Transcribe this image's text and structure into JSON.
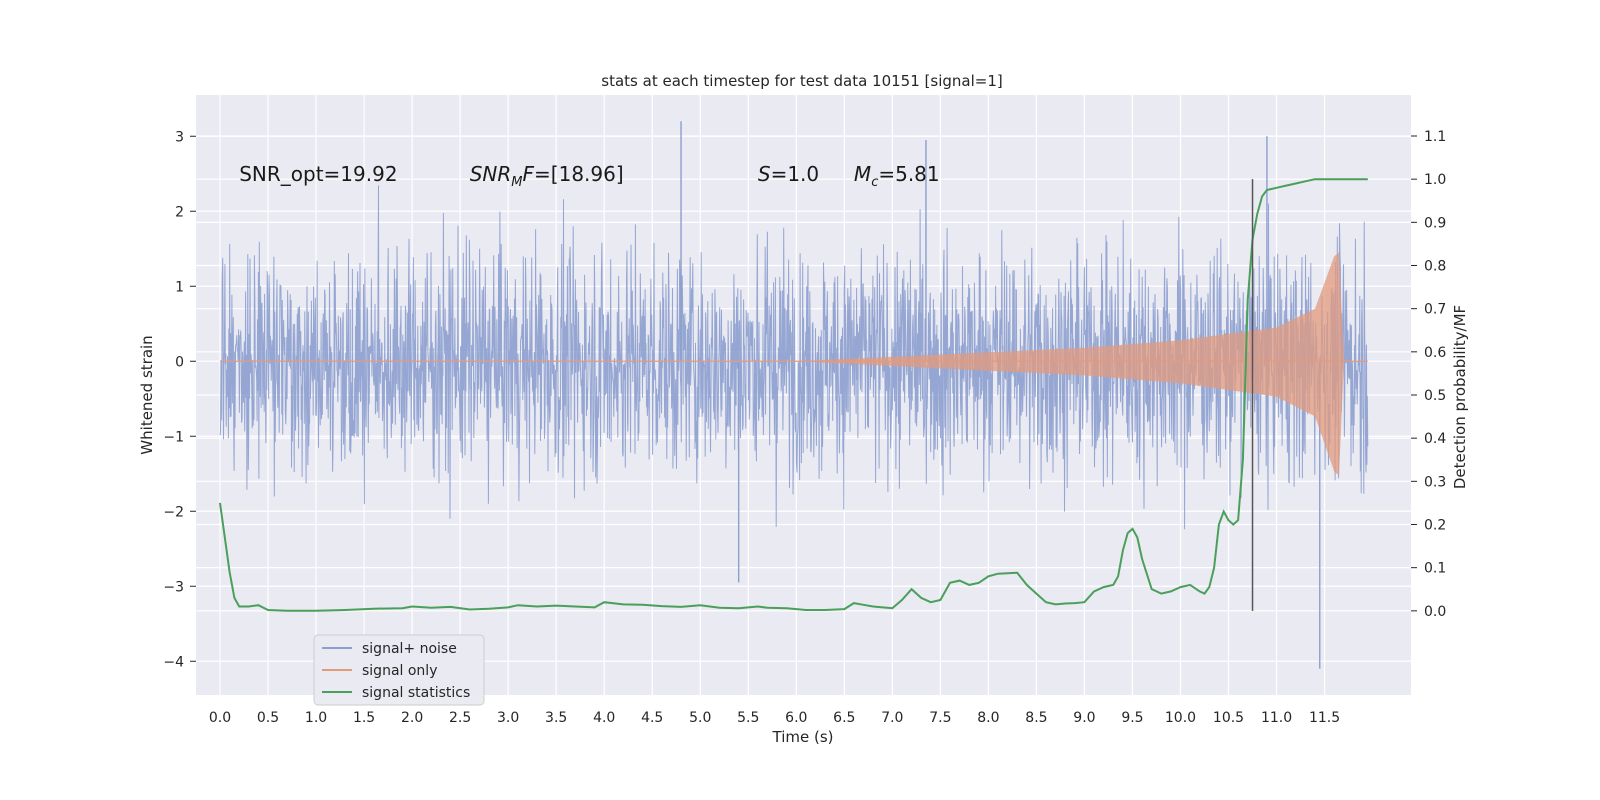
{
  "chart_data": {
    "type": "line",
    "title": "stats at each timestep for test data 10151 [signal=1]",
    "xlabel": "Time (s)",
    "ylabel": "Whitened strain",
    "y2label": "Detection probability/MF",
    "xlim": [
      -0.25,
      12.4
    ],
    "ylim": [
      -4.45,
      3.55
    ],
    "y2lim": [
      -0.195,
      1.195
    ],
    "x_ticks": [
      0.0,
      0.5,
      1.0,
      1.5,
      2.0,
      2.5,
      3.0,
      3.5,
      4.0,
      4.5,
      5.0,
      5.5,
      6.0,
      6.5,
      7.0,
      7.5,
      8.0,
      8.5,
      9.0,
      9.5,
      10.0,
      10.5,
      11.0,
      11.5
    ],
    "x_tick_labels": [
      "0.0",
      "0.5",
      "1.0",
      "1.5",
      "2.0",
      "2.5",
      "3.0",
      "3.5",
      "4.0",
      "4.5",
      "5.0",
      "5.5",
      "6.0",
      "6.5",
      "7.0",
      "7.5",
      "8.0",
      "8.5",
      "9.0",
      "9.5",
      "10.0",
      "10.5",
      "11.0",
      "11.5"
    ],
    "y_ticks": [
      3,
      2,
      1,
      0,
      -1,
      -2,
      -3,
      -4
    ],
    "y_tick_labels": [
      "3",
      "2",
      "1",
      "0",
      "−1",
      "−2",
      "−3",
      "−4"
    ],
    "y2_ticks": [
      1.1,
      1.0,
      0.9,
      0.8,
      0.7,
      0.6,
      0.5,
      0.4,
      0.3,
      0.2,
      0.1,
      0.0
    ],
    "y2_tick_labels": [
      "1.1",
      "1.0",
      "0.9",
      "0.8",
      "0.7",
      "0.6",
      "0.5",
      "0.4",
      "0.3",
      "0.2",
      "0.1",
      "0.0"
    ],
    "grid": true,
    "legend_position": "lower-left",
    "series": [
      {
        "name": "signal+ noise",
        "axis": "left",
        "color": "#8c9fcf",
        "x_range": [
          0.0,
          11.95
        ],
        "noise_std": 0.75,
        "peaks": [
          {
            "x": 4.8,
            "y": 3.2
          },
          {
            "x": 11.45,
            "y": -4.1
          },
          {
            "x": 5.4,
            "y": -2.95
          },
          {
            "x": 10.9,
            "y": 3.0
          },
          {
            "x": 7.35,
            "y": 2.95
          }
        ]
      },
      {
        "name": "signal only",
        "axis": "left",
        "color": "#e29a7d",
        "chirp": {
          "t_merge": 11.65,
          "points": [
            {
              "x": 6.0,
              "y": 0.0
            },
            {
              "x": 7.0,
              "y": 0.06
            },
            {
              "x": 8.0,
              "y": 0.12
            },
            {
              "x": 9.0,
              "y": 0.18
            },
            {
              "x": 10.0,
              "y": 0.28
            },
            {
              "x": 11.0,
              "y": 0.45
            },
            {
              "x": 11.4,
              "y": 0.7
            },
            {
              "x": 11.6,
              "y": 1.4
            },
            {
              "x": 11.65,
              "y": 1.45
            },
            {
              "x": 11.7,
              "y": 0.05
            }
          ]
        }
      },
      {
        "name": "signal statistics",
        "axis": "right",
        "color": "#4a9f5a",
        "x": [
          0.0,
          0.05,
          0.1,
          0.15,
          0.2,
          0.3,
          0.4,
          0.5,
          0.7,
          1.0,
          1.3,
          1.6,
          1.9,
          2.0,
          2.2,
          2.4,
          2.6,
          2.8,
          3.0,
          3.1,
          3.3,
          3.5,
          3.7,
          3.9,
          4.0,
          4.2,
          4.4,
          4.6,
          4.8,
          5.0,
          5.2,
          5.4,
          5.6,
          5.7,
          5.9,
          6.1,
          6.3,
          6.5,
          6.6,
          6.7,
          6.8,
          6.9,
          7.0,
          7.1,
          7.2,
          7.3,
          7.4,
          7.5,
          7.6,
          7.7,
          7.8,
          7.9,
          8.0,
          8.1,
          8.2,
          8.3,
          8.4,
          8.5,
          8.6,
          8.7,
          8.8,
          8.9,
          9.0,
          9.1,
          9.2,
          9.3,
          9.35,
          9.4,
          9.45,
          9.5,
          9.55,
          9.6,
          9.7,
          9.8,
          9.9,
          10.0,
          10.1,
          10.2,
          10.25,
          10.3,
          10.35,
          10.4,
          10.45,
          10.5,
          10.55,
          10.6,
          10.65,
          10.7,
          10.75,
          10.8,
          10.85,
          10.9,
          11.0,
          11.1,
          11.2,
          11.3,
          11.4,
          11.5,
          11.6,
          11.7,
          11.8,
          11.9,
          11.95
        ],
        "y": [
          0.25,
          0.17,
          0.09,
          0.03,
          0.01,
          0.01,
          0.013,
          0.002,
          0.0,
          0.0,
          0.002,
          0.005,
          0.006,
          0.01,
          0.007,
          0.009,
          0.003,
          0.005,
          0.008,
          0.013,
          0.01,
          0.012,
          0.01,
          0.008,
          0.02,
          0.015,
          0.014,
          0.011,
          0.009,
          0.013,
          0.007,
          0.006,
          0.01,
          0.007,
          0.006,
          0.002,
          0.002,
          0.004,
          0.018,
          0.014,
          0.01,
          0.008,
          0.006,
          0.025,
          0.05,
          0.03,
          0.02,
          0.025,
          0.065,
          0.07,
          0.06,
          0.065,
          0.08,
          0.086,
          0.087,
          0.088,
          0.06,
          0.04,
          0.02,
          0.015,
          0.017,
          0.018,
          0.02,
          0.045,
          0.055,
          0.06,
          0.08,
          0.14,
          0.18,
          0.19,
          0.17,
          0.12,
          0.05,
          0.04,
          0.045,
          0.055,
          0.06,
          0.045,
          0.04,
          0.055,
          0.1,
          0.2,
          0.23,
          0.21,
          0.2,
          0.21,
          0.35,
          0.72,
          0.86,
          0.92,
          0.96,
          0.975,
          0.98,
          0.985,
          0.99,
          0.995,
          1.0,
          1.0,
          1.0,
          1.0,
          1.0,
          1.0,
          1.0
        ]
      }
    ],
    "vline": {
      "x": 10.75,
      "y_from": 0.0,
      "y_to": 1.0,
      "axis": "right",
      "color": "#555555"
    },
    "annotations": [
      {
        "text": "SNR_opt=19.92",
        "x": 0.2,
        "y": 2.5,
        "italic": false
      },
      {
        "text": "=[18.96]",
        "prefix_italic": "SNR",
        "sub": "M",
        "mid_italic": "F",
        "x": 2.6,
        "y": 2.5
      },
      {
        "text": "=1.0",
        "prefix_italic": "S",
        "x": 5.6,
        "y": 2.5
      },
      {
        "text": "=5.81",
        "prefix_italic": "M",
        "sub": "c",
        "x": 6.6,
        "y": 2.5
      }
    ]
  }
}
